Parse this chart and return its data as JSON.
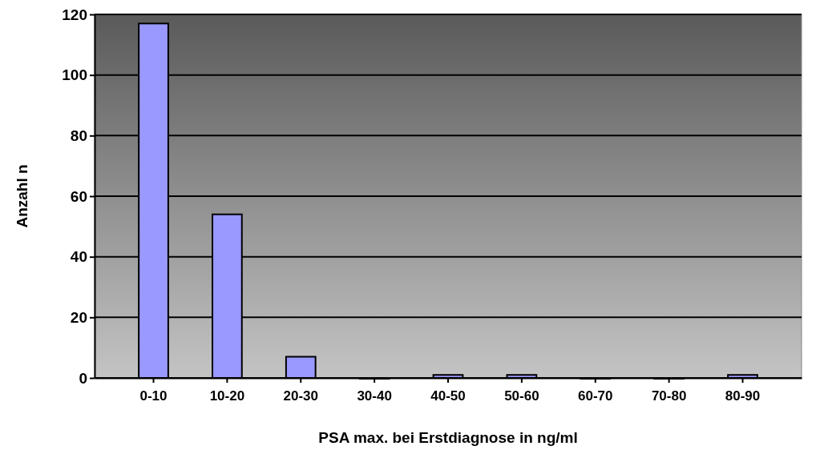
{
  "chart_data": {
    "type": "bar",
    "xlabel": "PSA max. bei Erstdiagnose in ng/ml",
    "ylabel": "Anzahl n",
    "categories": [
      "0-10",
      "10-20",
      "20-30",
      "30-40",
      "40-50",
      "50-60",
      "60-70",
      "70-80",
      "80-90"
    ],
    "values": [
      117,
      54,
      7,
      0,
      1,
      1,
      0,
      0,
      1
    ],
    "color": "#9999ff",
    "ylim": [
      0,
      120
    ],
    "yticks": [
      0,
      20,
      40,
      60,
      80,
      100,
      120
    ],
    "grid": "y"
  }
}
